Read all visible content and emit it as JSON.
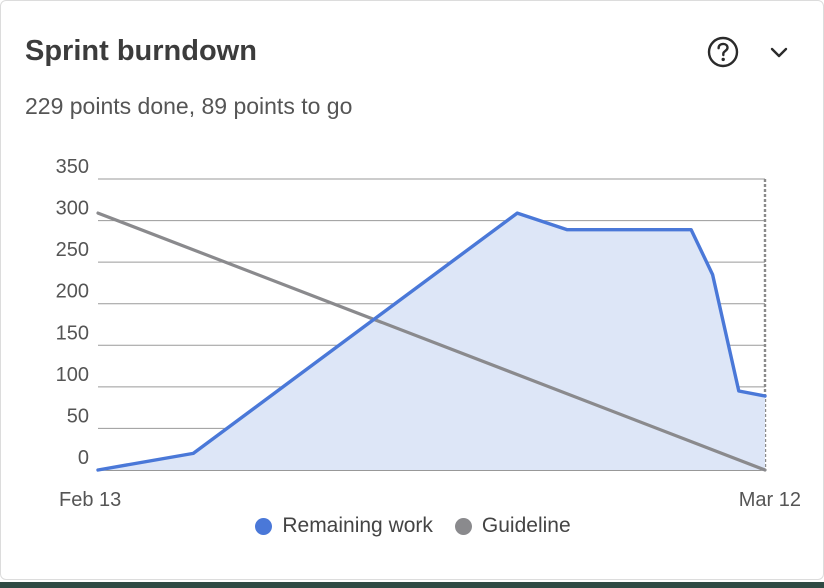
{
  "header": {
    "title": "Sprint burndown",
    "subtitle": "229 points done, 89 points to go",
    "help_icon": "question-circle-icon",
    "menu_icon": "chevron-down-icon"
  },
  "chart_data": {
    "type": "area",
    "title": "",
    "xlabel": "",
    "ylabel": "",
    "x_tick_labels": [
      "Feb 13",
      "Mar 12"
    ],
    "y_ticks": [
      0,
      50,
      100,
      150,
      200,
      250,
      300,
      350
    ],
    "ylim": [
      0,
      350
    ],
    "grid": true,
    "legend_position": "bottom",
    "series": [
      {
        "name": "Remaining work",
        "color": "#4a78d8",
        "fill": "#dde6f7",
        "points": [
          [
            0,
            0
          ],
          [
            4,
            20
          ],
          [
            17.6,
            309
          ],
          [
            19.7,
            289
          ],
          [
            24.9,
            289
          ],
          [
            25.8,
            235
          ],
          [
            26.9,
            95
          ],
          [
            28,
            89
          ]
        ]
      },
      {
        "name": "Guideline",
        "color": "#8a8a8d",
        "points": [
          [
            0,
            309
          ],
          [
            28,
            0
          ]
        ]
      }
    ],
    "x_domain": [
      0,
      28
    ],
    "today_marker_x": 28
  }
}
